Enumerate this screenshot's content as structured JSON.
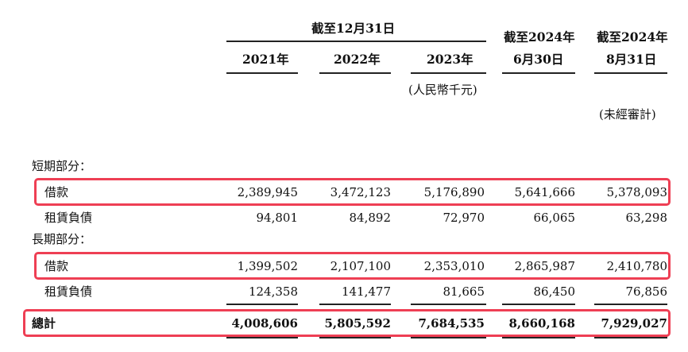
{
  "header": {
    "group_label": "截至12月31日",
    "years": [
      "2021年",
      "2022年",
      "2023年"
    ],
    "col4_line1": "截至2024年",
    "col4_line2": "6月30日",
    "col5_line1": "截至2024年",
    "col5_line2": "8月31日",
    "currency_note": "(人民幣千元)",
    "unaudited_note": "(未經審計)"
  },
  "sections": {
    "short_term": "短期部分：",
    "long_term": "長期部分："
  },
  "rows": {
    "st_borrowings": {
      "label": "借款",
      "values": [
        "2,389,945",
        "3,472,123",
        "5,176,890",
        "5,641,666",
        "5,378,093"
      ]
    },
    "st_lease": {
      "label": "租賃負債",
      "values": [
        "94,801",
        "84,892",
        "72,970",
        "66,065",
        "63,298"
      ]
    },
    "lt_borrowings": {
      "label": "借款",
      "values": [
        "1,399,502",
        "2,107,100",
        "2,353,010",
        "2,865,987",
        "2,410,780"
      ]
    },
    "lt_lease": {
      "label": "租賃負債",
      "values": [
        "124,358",
        "141,477",
        "81,665",
        "86,450",
        "76,856"
      ]
    },
    "total": {
      "label": "總計",
      "values": [
        "4,008,606",
        "5,805,592",
        "7,684,535",
        "8,660,168",
        "7,929,027"
      ]
    }
  },
  "highlight_color": "#ee3f54"
}
